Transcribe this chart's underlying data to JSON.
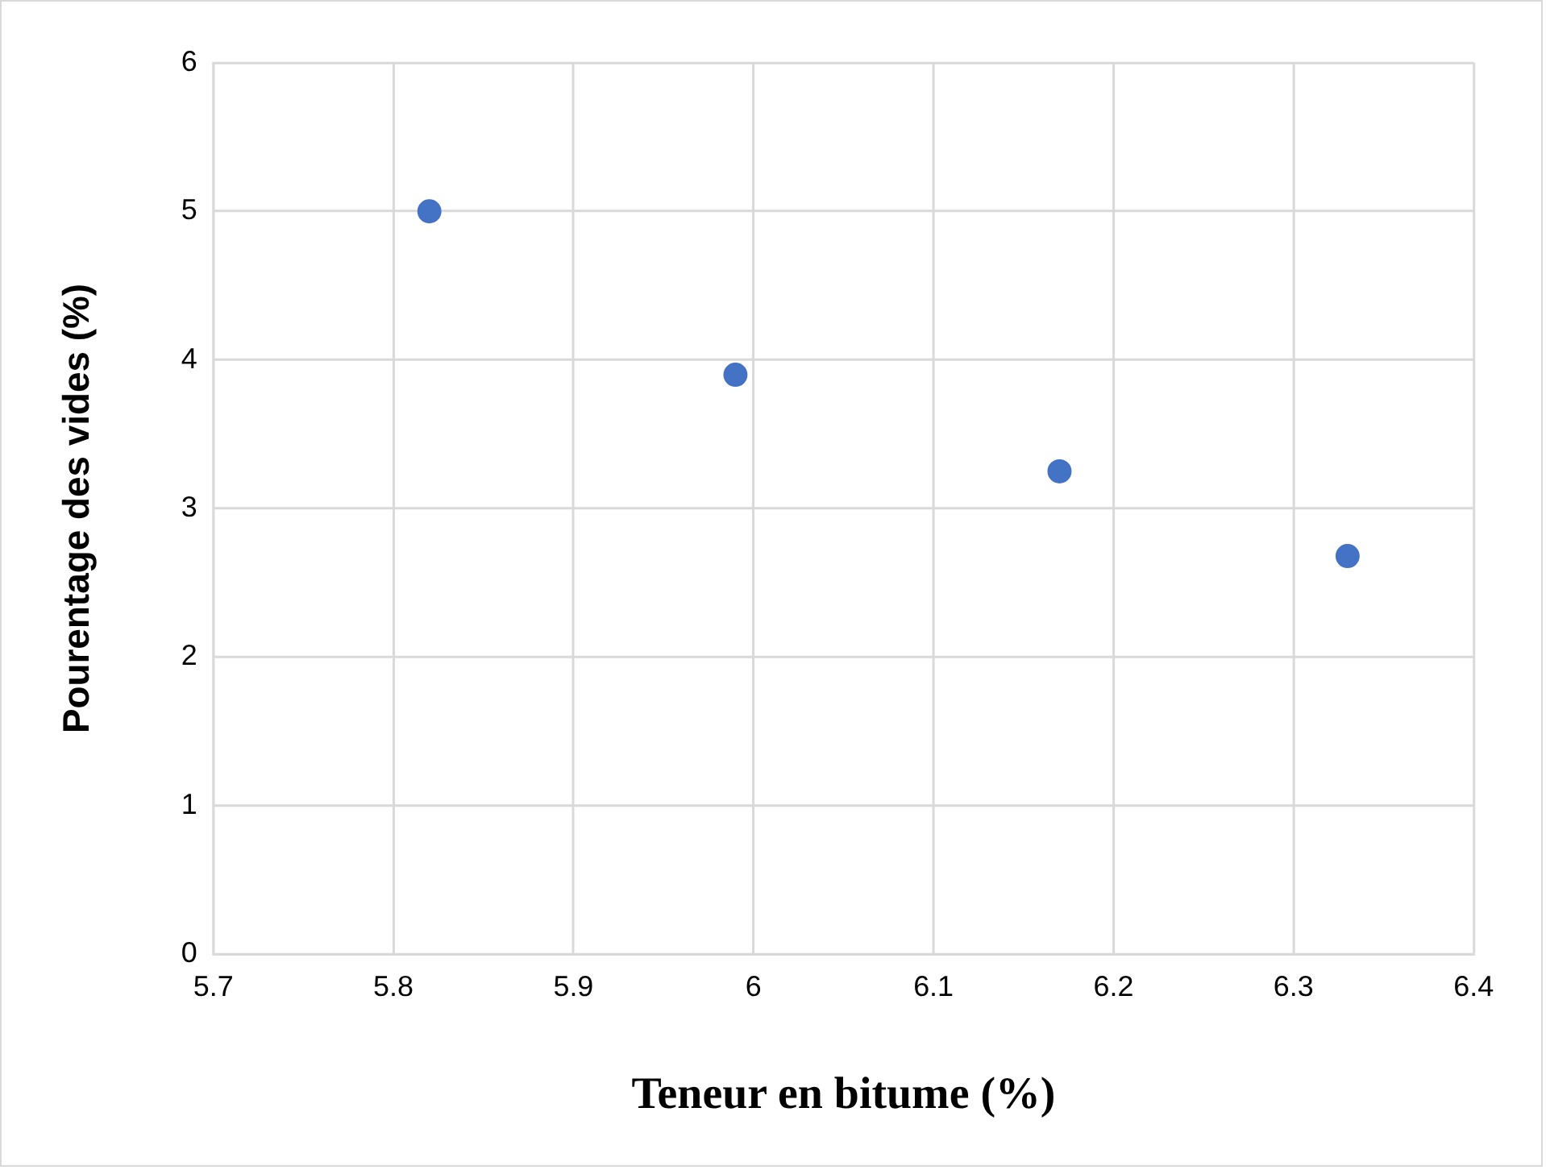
{
  "chart_data": {
    "type": "scatter",
    "xlabel": "Teneur en bitume (%)",
    "ylabel": "Pourentage des vides (%)",
    "x": [
      5.82,
      5.99,
      6.17,
      6.33
    ],
    "series": [
      {
        "color": "#4472c4",
        "values": [
          5.0,
          3.9,
          3.25,
          2.68
        ]
      }
    ],
    "xlim": [
      5.7,
      6.4
    ],
    "xticks": [
      5.7,
      5.8,
      5.9,
      6,
      6.1,
      6.2,
      6.3,
      6.4
    ],
    "ylim": [
      0,
      6
    ],
    "yticks": [
      0,
      1,
      2,
      3,
      4,
      5,
      6
    ],
    "grid": true,
    "legend": false,
    "marker": "circle"
  }
}
